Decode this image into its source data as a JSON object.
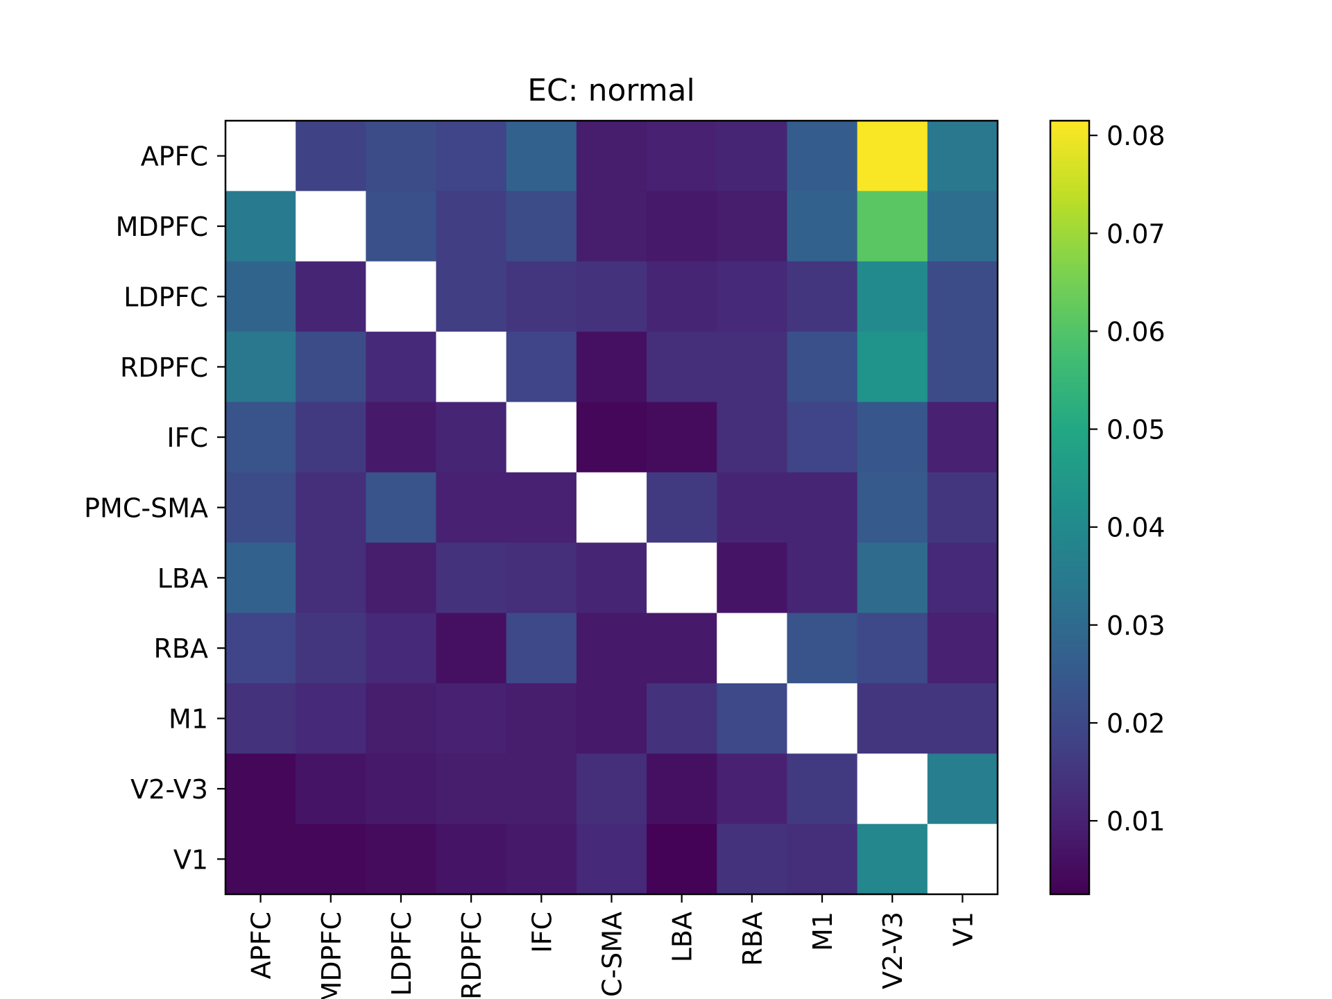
{
  "chart_data": {
    "type": "heatmap",
    "title": "EC: normal",
    "xlabel": "",
    "ylabel": "",
    "rows": [
      "APFC",
      "MDPFC",
      "LDPFC",
      "RDPFC",
      "IFC",
      "PMC-SMA",
      "LBA",
      "RBA",
      "M1",
      "V2-V3",
      "V1"
    ],
    "cols": [
      "APFC",
      "MDPFC",
      "LDPFC",
      "RDPFC",
      "IFC",
      "PMC-SMA",
      "LBA",
      "RBA",
      "M1",
      "V2-V3",
      "V1"
    ],
    "values": [
      [
        null,
        0.018,
        0.021,
        0.019,
        0.027,
        0.009,
        0.01,
        0.011,
        0.026,
        0.081,
        0.034
      ],
      [
        0.035,
        null,
        0.022,
        0.017,
        0.021,
        0.009,
        0.008,
        0.009,
        0.027,
        0.061,
        0.031
      ],
      [
        0.028,
        0.011,
        null,
        0.017,
        0.015,
        0.014,
        0.011,
        0.012,
        0.015,
        0.04,
        0.021
      ],
      [
        0.034,
        0.021,
        0.012,
        null,
        0.019,
        0.006,
        0.013,
        0.013,
        0.022,
        0.043,
        0.021
      ],
      [
        0.023,
        0.016,
        0.008,
        0.011,
        null,
        0.004,
        0.005,
        0.013,
        0.019,
        0.024,
        0.01
      ],
      [
        0.021,
        0.013,
        0.023,
        0.01,
        0.01,
        null,
        0.016,
        0.011,
        0.011,
        0.025,
        0.015
      ],
      [
        0.027,
        0.013,
        0.009,
        0.014,
        0.013,
        0.011,
        null,
        0.007,
        0.011,
        0.03,
        0.012
      ],
      [
        0.019,
        0.015,
        0.012,
        0.006,
        0.02,
        0.008,
        0.008,
        null,
        0.023,
        0.02,
        0.01
      ],
      [
        0.014,
        0.012,
        0.009,
        0.01,
        0.009,
        0.008,
        0.014,
        0.02,
        null,
        0.015,
        0.015
      ],
      [
        0.004,
        0.007,
        0.008,
        0.009,
        0.009,
        0.013,
        0.006,
        0.01,
        0.016,
        null,
        0.036
      ],
      [
        0.004,
        0.004,
        0.005,
        0.007,
        0.008,
        0.012,
        0.003,
        0.014,
        0.013,
        0.039,
        null
      ]
    ],
    "colormap": "viridis",
    "diagonal_color": "#ffffff",
    "vmin": 0.0025,
    "vmax": 0.0815,
    "colorbar_ticks": [
      0.01,
      0.02,
      0.03,
      0.04,
      0.05,
      0.06,
      0.07,
      0.08
    ],
    "colorbar_tick_labels": [
      "0.01",
      "0.02",
      "0.03",
      "0.04",
      "0.05",
      "0.06",
      "0.07",
      "0.08"
    ],
    "grid": false
  }
}
